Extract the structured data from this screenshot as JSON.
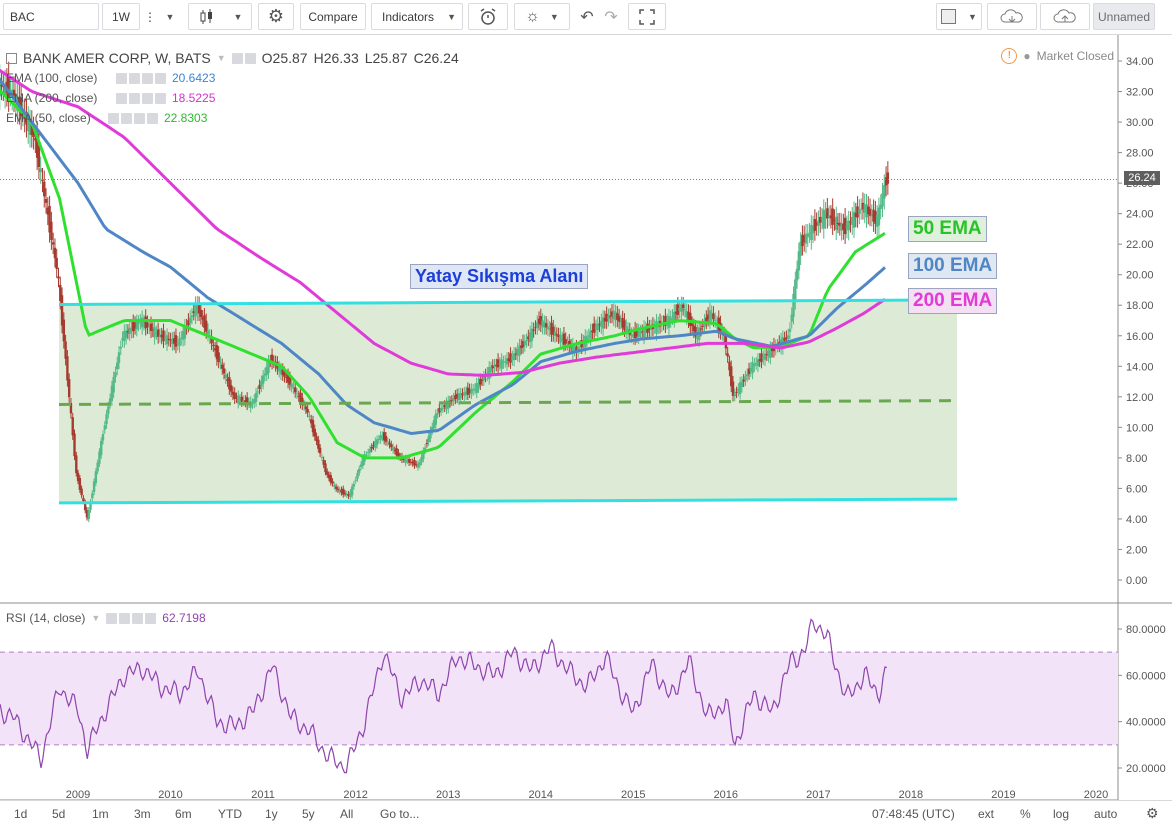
{
  "toolbar": {
    "symbol": "BAC",
    "interval": "1W",
    "compare_label": "Compare",
    "indicators_label": "Indicators",
    "layout_name": "Unnamed"
  },
  "legend": {
    "title": "BANK AMER CORP, W, BATS",
    "ohlc": [
      "O25.87",
      "H26.33",
      "L25.87",
      "C26.24"
    ],
    "ema_rows": [
      {
        "label": "EMA (100, close)",
        "value": "20.6423",
        "color": "#3b86d0"
      },
      {
        "label": "EMA (200, close)",
        "value": "18.5225",
        "color": "#d62fd0"
      },
      {
        "label": "EMA (50, close)",
        "value": "22.8303",
        "color": "#2fb82f"
      }
    ],
    "market_status": "Market Closed",
    "rsi_label": "RSI (14, close)",
    "rsi_value": "62.7198"
  },
  "annotations": {
    "zone_label": "Yatay Sıkışma Alanı",
    "ema50": "50 EMA",
    "ema100": "100 EMA",
    "ema200": "200 EMA"
  },
  "colors": {
    "ema50": "#2fe02f",
    "ema100": "#4f86c6",
    "ema200": "#e03ad8",
    "cyan_line": "#33e0e0",
    "zone_fill": "#d7e8cf",
    "mid_dash": "#6aa84f",
    "rsi": "#8e44ad",
    "rsi_band": "#f2e3f8",
    "candle_up": "#53b987",
    "candle_down": "#a63a2e"
  },
  "current_price": "26.24",
  "chart_data": [
    {
      "type": "line",
      "title": "BANK AMER CORP, W, BATS",
      "y_axis": {
        "min": 0,
        "max": 35,
        "ticks": [
          "0.00",
          "2.00",
          "4.00",
          "6.00",
          "8.00",
          "10.00",
          "12.00",
          "14.00",
          "16.00",
          "18.00",
          "20.00",
          "22.00",
          "24.00",
          "26.00",
          "28.00",
          "30.00",
          "32.00",
          "34.00"
        ]
      },
      "x_axis": {
        "ticks": [
          "2009",
          "2010",
          "2011",
          "2012",
          "2013",
          "2014",
          "2015",
          "2016",
          "2017",
          "2018",
          "2019",
          "2020"
        ]
      },
      "series": [
        {
          "name": "price",
          "x": [
            2008.0,
            2008.3,
            2008.55,
            2008.8,
            2009.0,
            2009.12,
            2009.3,
            2009.5,
            2009.7,
            2009.9,
            2010.1,
            2010.3,
            2010.5,
            2010.7,
            2010.9,
            2011.1,
            2011.3,
            2011.5,
            2011.7,
            2011.8,
            2011.95,
            2012.1,
            2012.3,
            2012.5,
            2012.7,
            2012.9,
            2013.1,
            2013.3,
            2013.5,
            2013.7,
            2013.9,
            2014.0,
            2014.2,
            2014.4,
            2014.6,
            2014.8,
            2015.0,
            2015.2,
            2015.4,
            2015.55,
            2015.7,
            2015.85,
            2016.0,
            2016.1,
            2016.3,
            2016.5,
            2016.7,
            2016.82,
            2016.95,
            2017.1,
            2017.3,
            2017.5,
            2017.65,
            2017.75
          ],
          "y": [
            33,
            32,
            29,
            20,
            7,
            4,
            10,
            16,
            17,
            16,
            15.5,
            18,
            15,
            12,
            11.5,
            14.5,
            13,
            11,
            7,
            6,
            5.5,
            8,
            9.5,
            8,
            7.5,
            11,
            12,
            12.5,
            14,
            14.5,
            16,
            17,
            16,
            15,
            16.5,
            17.5,
            16,
            16.5,
            17,
            18,
            16,
            17.5,
            16,
            12,
            14,
            15,
            16,
            22,
            23,
            24,
            23,
            24.5,
            23.5,
            26.24
          ]
        },
        {
          "name": "50 EMA",
          "x": [
            2008.0,
            2008.5,
            2008.8,
            2009.1,
            2009.5,
            2010.0,
            2010.4,
            2010.8,
            2011.2,
            2011.5,
            2011.8,
            2012.1,
            2012.5,
            2012.9,
            2013.3,
            2013.7,
            2014.0,
            2014.4,
            2014.8,
            2015.1,
            2015.5,
            2015.9,
            2016.1,
            2016.3,
            2016.6,
            2016.9,
            2017.1,
            2017.4,
            2017.75
          ],
          "y": [
            33,
            30,
            25,
            16,
            17,
            17,
            16,
            15,
            14,
            12,
            9,
            8,
            8,
            8.7,
            11,
            13,
            14.8,
            15.5,
            16,
            16.5,
            17,
            16.8,
            15.8,
            15.2,
            15.3,
            16,
            19,
            21.5,
            22.83
          ]
        },
        {
          "name": "100 EMA",
          "x": [
            2008.0,
            2008.5,
            2009.0,
            2009.3,
            2009.7,
            2010.0,
            2010.4,
            2010.8,
            2011.2,
            2011.6,
            2011.9,
            2012.2,
            2012.6,
            2012.9,
            2013.3,
            2013.7,
            2014.0,
            2014.4,
            2014.8,
            2015.1,
            2015.5,
            2015.9,
            2016.1,
            2016.5,
            2016.9,
            2017.2,
            2017.5,
            2017.75
          ],
          "y": [
            34,
            30,
            26,
            23,
            21.5,
            20.5,
            18.5,
            17,
            15.5,
            13.5,
            11.5,
            10.3,
            9.6,
            9.8,
            11.5,
            12.8,
            14.3,
            15,
            15.5,
            15.8,
            16,
            16.3,
            15.8,
            15.3,
            16,
            17.8,
            19.3,
            20.64
          ]
        },
        {
          "name": "200 EMA",
          "x": [
            2008.0,
            2008.5,
            2009.0,
            2009.5,
            2010.0,
            2010.5,
            2011.0,
            2011.4,
            2011.8,
            2012.2,
            2012.6,
            2013.0,
            2013.4,
            2013.8,
            2014.2,
            2014.6,
            2015.0,
            2015.4,
            2015.8,
            2016.2,
            2016.6,
            2016.9,
            2017.2,
            2017.5,
            2017.75
          ],
          "y": [
            34,
            32,
            31,
            29,
            26,
            23,
            21,
            19.5,
            17.5,
            15.5,
            14.2,
            13.5,
            13.4,
            13.6,
            14.2,
            14.6,
            14.9,
            15.2,
            15.5,
            15.5,
            15.2,
            15.6,
            16.5,
            17.5,
            18.52
          ]
        }
      ]
    },
    {
      "type": "line",
      "title": "RSI (14, close)",
      "y_axis": {
        "ticks": [
          "20.0000",
          "40.0000",
          "60.0000",
          "80.0000"
        ]
      },
      "series": [
        {
          "name": "RSI",
          "x": [
            2008.0,
            2008.3,
            2008.6,
            2008.8,
            2009.0,
            2009.1,
            2009.3,
            2009.5,
            2009.7,
            2009.9,
            2010.1,
            2010.3,
            2010.5,
            2010.7,
            2010.9,
            2011.1,
            2011.3,
            2011.5,
            2011.7,
            2011.9,
            2012.1,
            2012.3,
            2012.5,
            2012.7,
            2012.9,
            2013.1,
            2013.3,
            2013.5,
            2013.7,
            2013.9,
            2014.1,
            2014.3,
            2014.5,
            2014.7,
            2014.9,
            2015.0,
            2015.2,
            2015.4,
            2015.6,
            2015.8,
            2016.0,
            2016.1,
            2016.3,
            2016.5,
            2016.7,
            2016.85,
            2016.95,
            2017.1,
            2017.3,
            2017.5,
            2017.65,
            2017.75
          ],
          "y": [
            48,
            42,
            24,
            55,
            45,
            28,
            45,
            60,
            63,
            55,
            52,
            62,
            40,
            38,
            45,
            64,
            42,
            36,
            25,
            20,
            40,
            70,
            50,
            58,
            52,
            68,
            64,
            60,
            70,
            62,
            72,
            62,
            55,
            68,
            50,
            44,
            65,
            50,
            66,
            42,
            48,
            30,
            52,
            44,
            66,
            70,
            84,
            76,
            50,
            60,
            52,
            62.72
          ]
        }
      ]
    }
  ]
}
